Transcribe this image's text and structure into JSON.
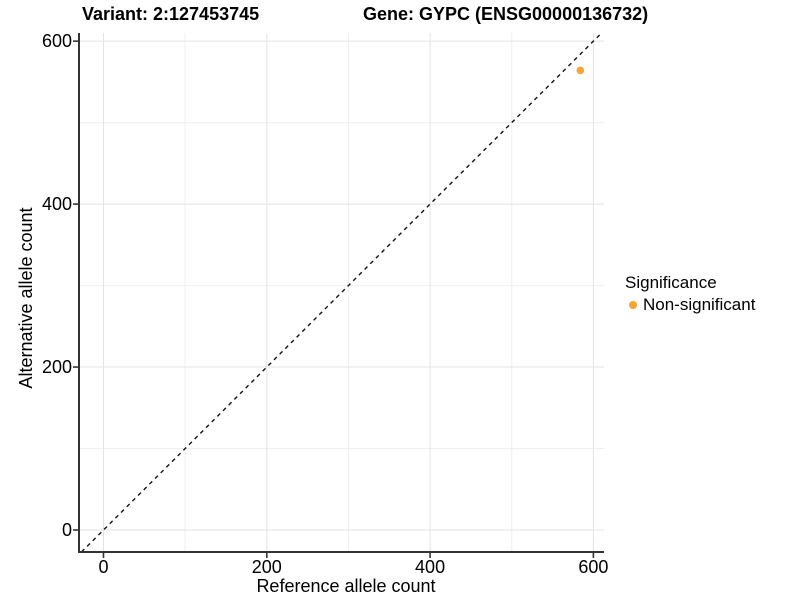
{
  "title": {
    "variant": "Variant: 2:127453745",
    "gene": "Gene: GYPC (ENSG00000136732)"
  },
  "axes": {
    "x_label": "Reference allele count",
    "y_label": "Alternative allele count"
  },
  "legend": {
    "title": "Significance",
    "items": [
      {
        "label": "Non-significant",
        "color": "#F9A432"
      }
    ]
  },
  "colors": {
    "background": "#FFFFFF",
    "point": "#F9A432",
    "grid_major": "#E3E3E3",
    "grid_minor": "#EFEFEF",
    "axis_line": "#333333",
    "dashed_line": "#111111",
    "text": "#000000"
  },
  "chart_data": {
    "type": "scatter",
    "title": "Variant: 2:127453745    Gene: GYPC (ENSG00000136732)",
    "xlabel": "Reference allele count",
    "ylabel": "Alternative allele count",
    "xlim": [
      -30,
      613
    ],
    "ylim": [
      -27,
      610
    ],
    "x_ticks": [
      0,
      200,
      400,
      600
    ],
    "y_ticks": [
      0,
      200,
      400,
      600
    ],
    "x_minor_gridlines": [
      100,
      300,
      500
    ],
    "y_minor_gridlines": [
      100,
      300,
      500
    ],
    "grid": true,
    "legend_position": "right",
    "identity_line": {
      "style": "dashed",
      "from": -27,
      "to": 610
    },
    "series": [
      {
        "name": "Non-significant",
        "color": "#F9A432",
        "points": [
          {
            "x": 584,
            "y": 564
          }
        ]
      }
    ]
  }
}
